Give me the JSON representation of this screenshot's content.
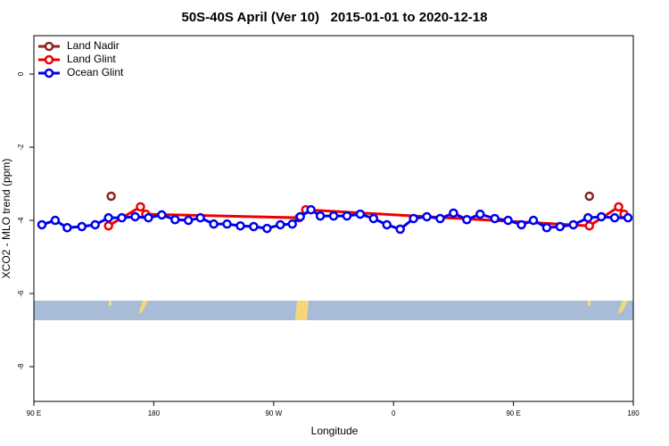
{
  "chart_data": {
    "type": "line",
    "title": "50S-40S April (Ver 10)   2015-01-01 to 2020-12-18",
    "x_label": "Longitude",
    "y_label": "XCO2 - MLO trend (ppm)",
    "xlim": [
      90,
      540
    ],
    "xticks": [
      {
        "value": 90,
        "label": "90 E"
      },
      {
        "value": 180,
        "label": "180"
      },
      {
        "value": 270,
        "label": "90 W"
      },
      {
        "value": 360,
        "label": "0"
      },
      {
        "value": 450,
        "label": "90 E"
      },
      {
        "value": 540,
        "label": "180"
      }
    ],
    "ylim": [
      -8.95,
      1.05
    ],
    "yticks": [
      0,
      -2,
      -4,
      -6,
      -8
    ],
    "legend": "top-left",
    "series": [
      {
        "name": "Land Nadir",
        "color": "#8b2323",
        "x": [
          148,
          174,
          507,
          534
        ],
        "values": [
          -3.34,
          null,
          -3.34,
          null
        ]
      },
      {
        "name": "Land Glint",
        "color": "#ee0000",
        "x": [
          146,
          170,
          174,
          289,
          294,
          507,
          529,
          533
        ],
        "values": [
          -4.15,
          -3.63,
          -3.83,
          -3.93,
          -3.71,
          -4.15,
          -3.63,
          -3.83
        ]
      },
      {
        "name": "Ocean Glint",
        "color": "#0000ee",
        "x": [
          96,
          106,
          115,
          126,
          136,
          146,
          156,
          166,
          176,
          186,
          196,
          206,
          215,
          225,
          235,
          245,
          255,
          265,
          275,
          284,
          290,
          298,
          305,
          315,
          325,
          335,
          345,
          355,
          365,
          375,
          385,
          395,
          405,
          415,
          425,
          436,
          446,
          456,
          465,
          475,
          485,
          495,
          506,
          516,
          526,
          536
        ],
        "values": [
          -4.12,
          -4.0,
          -4.2,
          -4.17,
          -4.12,
          -3.93,
          -3.93,
          -3.9,
          -3.93,
          -3.85,
          -3.98,
          -4.0,
          -3.93,
          -4.1,
          -4.1,
          -4.15,
          -4.17,
          -4.22,
          -4.12,
          -4.1,
          -3.9,
          -3.71,
          -3.88,
          -3.88,
          -3.88,
          -3.83,
          -3.95,
          -4.12,
          -4.24,
          -3.95,
          -3.9,
          -3.95,
          -3.8,
          -3.98,
          -3.83,
          -3.95,
          -4.0,
          -4.12,
          -4.0,
          -4.2,
          -4.17,
          -4.12,
          -3.93,
          -3.9,
          -3.93,
          -3.93
        ]
      }
    ]
  }
}
